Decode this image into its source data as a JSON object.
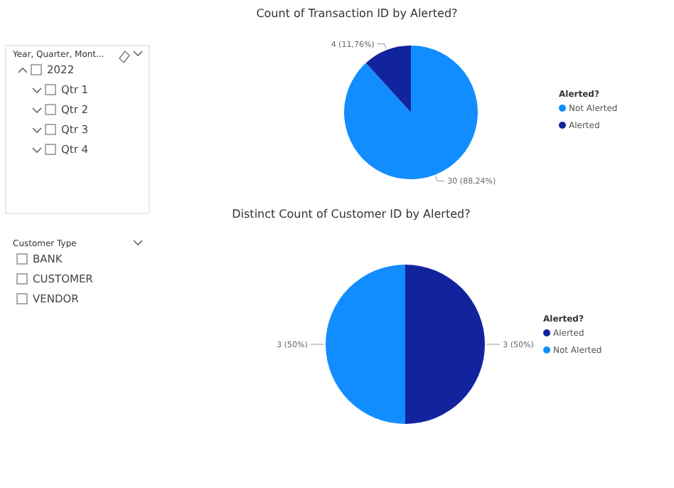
{
  "chart_data": [
    {
      "type": "other",
      "title": "Year, Quarter, Mont...",
      "categories": [
        "2022",
        "Qtr 1",
        "Qtr 2",
        "Qtr 3",
        "Qtr 4"
      ]
    },
    {
      "type": "pie",
      "title": "Count of Transaction ID by Alerted?",
      "legend_title": "Alerted?",
      "legend": "right",
      "categories": [
        "Not Alerted",
        "Alerted"
      ],
      "values": [
        30,
        4
      ],
      "colors": [
        "#118dff",
        "#12239e"
      ],
      "value_labels": [
        "30 (88,24%)",
        "4 (11,76%)"
      ]
    },
    {
      "type": "other",
      "title": "Customer Type",
      "categories": [
        "BANK",
        "CUSTOMER",
        "VENDOR"
      ]
    },
    {
      "type": "pie",
      "title": "Distinct Count of Customer ID by Alerted?",
      "legend_title": "Alerted?",
      "legend": "right",
      "categories": [
        "Alerted",
        "Not Alerted"
      ],
      "values": [
        3,
        3
      ],
      "colors": [
        "#12239e",
        "#118dff"
      ],
      "value_labels": [
        "3 (50%)",
        "3 (50%)"
      ]
    }
  ]
}
